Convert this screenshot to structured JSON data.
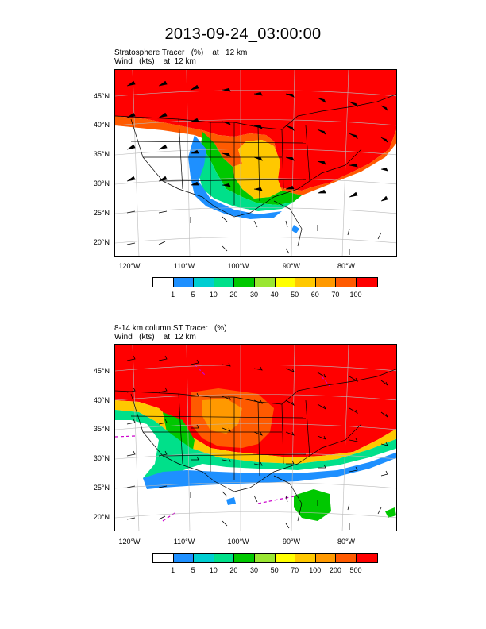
{
  "title": "2013-09-24_03:00:00",
  "panels": [
    {
      "line1": "Stratosphere Tracer   (%)    at   12 km",
      "line2": "Wind   (kts)    at  12 km",
      "lat_labels": [
        "45°N",
        "40°N",
        "35°N",
        "30°N",
        "25°N",
        "20°N"
      ],
      "lon_labels": [
        "120°W",
        "110°W",
        "100°W",
        "90°W",
        "80°W"
      ],
      "colorbar": {
        "colors": [
          "#ffffff",
          "#1e90ff",
          "#00ced1",
          "#00e08a",
          "#00c800",
          "#9ae632",
          "#ffff00",
          "#ffc800",
          "#ff9900",
          "#ff5a00",
          "#ff0000"
        ],
        "labels": [
          "1",
          "5",
          "10",
          "20",
          "30",
          "40",
          "50",
          "60",
          "70",
          "100"
        ]
      }
    },
    {
      "line1": "8-14 km column ST Tracer   (%)",
      "line2": "Wind   (kts)    at  12 km",
      "lat_labels": [
        "45°N",
        "40°N",
        "35°N",
        "30°N",
        "25°N",
        "20°N"
      ],
      "lon_labels": [
        "120°W",
        "110°W",
        "100°W",
        "90°W",
        "80°W"
      ],
      "colorbar": {
        "colors": [
          "#ffffff",
          "#1e90ff",
          "#00ced1",
          "#00e08a",
          "#00c800",
          "#9ae632",
          "#ffff00",
          "#ffc800",
          "#ff9900",
          "#ff5a00",
          "#ff0000"
        ],
        "labels": [
          "1",
          "5",
          "10",
          "20",
          "30",
          "50",
          "70",
          "100",
          "200",
          "500"
        ]
      }
    }
  ]
}
